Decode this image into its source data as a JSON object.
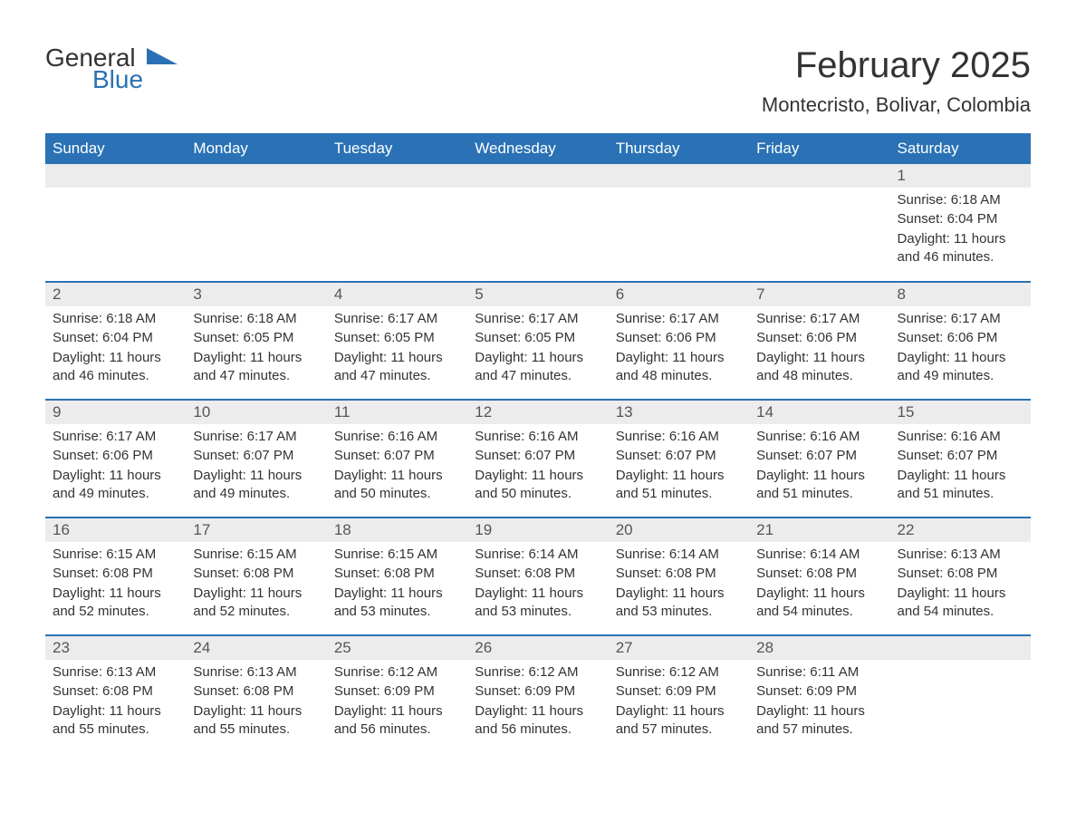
{
  "logo": {
    "word1": "General",
    "word2": "Blue",
    "text_color": "#333333",
    "accent_color": "#2a72b5"
  },
  "title": "February 2025",
  "location": "Montecristo, Bolivar, Colombia",
  "colors": {
    "header_bg": "#2a72b5",
    "header_text": "#ffffff",
    "daynum_bg": "#ececec",
    "row_border": "#2a72b5",
    "body_text": "#333333",
    "background": "#ffffff"
  },
  "weekdays": [
    "Sunday",
    "Monday",
    "Tuesday",
    "Wednesday",
    "Thursday",
    "Friday",
    "Saturday"
  ],
  "labels": {
    "sunrise": "Sunrise",
    "sunset": "Sunset",
    "daylight_prefix": "Daylight",
    "hours_word": "hours",
    "and_word": "and",
    "minutes_word": "minutes."
  },
  "weeks": [
    [
      null,
      null,
      null,
      null,
      null,
      null,
      {
        "day": 1,
        "sunrise": "6:18 AM",
        "sunset": "6:04 PM",
        "dl_h": 11,
        "dl_m": 46
      }
    ],
    [
      {
        "day": 2,
        "sunrise": "6:18 AM",
        "sunset": "6:04 PM",
        "dl_h": 11,
        "dl_m": 46
      },
      {
        "day": 3,
        "sunrise": "6:18 AM",
        "sunset": "6:05 PM",
        "dl_h": 11,
        "dl_m": 47
      },
      {
        "day": 4,
        "sunrise": "6:17 AM",
        "sunset": "6:05 PM",
        "dl_h": 11,
        "dl_m": 47
      },
      {
        "day": 5,
        "sunrise": "6:17 AM",
        "sunset": "6:05 PM",
        "dl_h": 11,
        "dl_m": 47
      },
      {
        "day": 6,
        "sunrise": "6:17 AM",
        "sunset": "6:06 PM",
        "dl_h": 11,
        "dl_m": 48
      },
      {
        "day": 7,
        "sunrise": "6:17 AM",
        "sunset": "6:06 PM",
        "dl_h": 11,
        "dl_m": 48
      },
      {
        "day": 8,
        "sunrise": "6:17 AM",
        "sunset": "6:06 PM",
        "dl_h": 11,
        "dl_m": 49
      }
    ],
    [
      {
        "day": 9,
        "sunrise": "6:17 AM",
        "sunset": "6:06 PM",
        "dl_h": 11,
        "dl_m": 49
      },
      {
        "day": 10,
        "sunrise": "6:17 AM",
        "sunset": "6:07 PM",
        "dl_h": 11,
        "dl_m": 49
      },
      {
        "day": 11,
        "sunrise": "6:16 AM",
        "sunset": "6:07 PM",
        "dl_h": 11,
        "dl_m": 50
      },
      {
        "day": 12,
        "sunrise": "6:16 AM",
        "sunset": "6:07 PM",
        "dl_h": 11,
        "dl_m": 50
      },
      {
        "day": 13,
        "sunrise": "6:16 AM",
        "sunset": "6:07 PM",
        "dl_h": 11,
        "dl_m": 51
      },
      {
        "day": 14,
        "sunrise": "6:16 AM",
        "sunset": "6:07 PM",
        "dl_h": 11,
        "dl_m": 51
      },
      {
        "day": 15,
        "sunrise": "6:16 AM",
        "sunset": "6:07 PM",
        "dl_h": 11,
        "dl_m": 51
      }
    ],
    [
      {
        "day": 16,
        "sunrise": "6:15 AM",
        "sunset": "6:08 PM",
        "dl_h": 11,
        "dl_m": 52
      },
      {
        "day": 17,
        "sunrise": "6:15 AM",
        "sunset": "6:08 PM",
        "dl_h": 11,
        "dl_m": 52
      },
      {
        "day": 18,
        "sunrise": "6:15 AM",
        "sunset": "6:08 PM",
        "dl_h": 11,
        "dl_m": 53
      },
      {
        "day": 19,
        "sunrise": "6:14 AM",
        "sunset": "6:08 PM",
        "dl_h": 11,
        "dl_m": 53
      },
      {
        "day": 20,
        "sunrise": "6:14 AM",
        "sunset": "6:08 PM",
        "dl_h": 11,
        "dl_m": 53
      },
      {
        "day": 21,
        "sunrise": "6:14 AM",
        "sunset": "6:08 PM",
        "dl_h": 11,
        "dl_m": 54
      },
      {
        "day": 22,
        "sunrise": "6:13 AM",
        "sunset": "6:08 PM",
        "dl_h": 11,
        "dl_m": 54
      }
    ],
    [
      {
        "day": 23,
        "sunrise": "6:13 AM",
        "sunset": "6:08 PM",
        "dl_h": 11,
        "dl_m": 55
      },
      {
        "day": 24,
        "sunrise": "6:13 AM",
        "sunset": "6:08 PM",
        "dl_h": 11,
        "dl_m": 55
      },
      {
        "day": 25,
        "sunrise": "6:12 AM",
        "sunset": "6:09 PM",
        "dl_h": 11,
        "dl_m": 56
      },
      {
        "day": 26,
        "sunrise": "6:12 AM",
        "sunset": "6:09 PM",
        "dl_h": 11,
        "dl_m": 56
      },
      {
        "day": 27,
        "sunrise": "6:12 AM",
        "sunset": "6:09 PM",
        "dl_h": 11,
        "dl_m": 57
      },
      {
        "day": 28,
        "sunrise": "6:11 AM",
        "sunset": "6:09 PM",
        "dl_h": 11,
        "dl_m": 57
      },
      null
    ]
  ]
}
